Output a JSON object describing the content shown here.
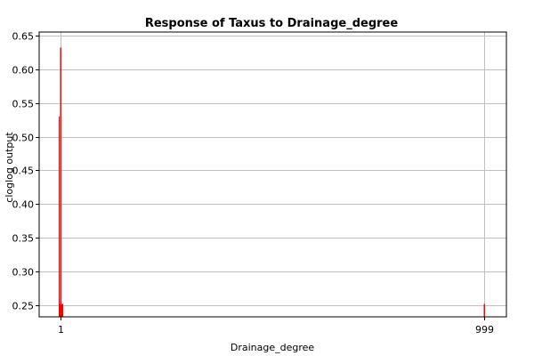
{
  "chart_data": {
    "type": "bar",
    "title": "Response of Taxus to Drainage_degree",
    "xlabel": "Drainage_degree",
    "ylabel": "cloglog output",
    "categories": [
      "1",
      "999"
    ],
    "values": [
      0.632,
      0.252
    ],
    "ylim": [
      0.233,
      0.655
    ],
    "yticks": [
      "0.25",
      "0.30",
      "0.35",
      "0.40",
      "0.45",
      "0.50",
      "0.55",
      "0.60",
      "0.65"
    ],
    "grid": true,
    "legend": "none",
    "colors": {
      "bar": "#ff0000",
      "grid": "#c0c0c0",
      "axis": "#000000",
      "background": "#ffffff"
    }
  }
}
